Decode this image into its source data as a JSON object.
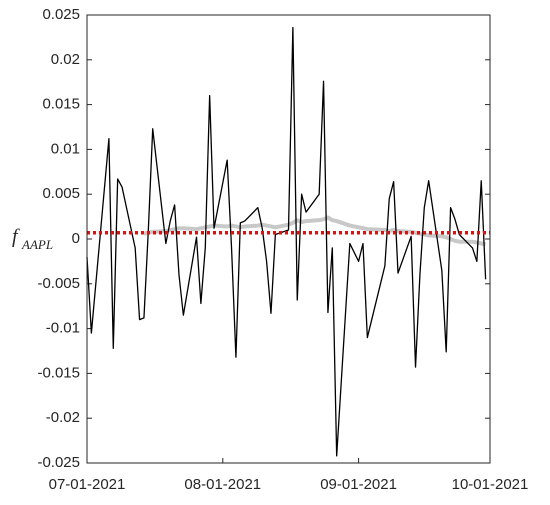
{
  "chart_data": {
    "type": "line",
    "ylabel": "f",
    "ylabel_subscript": "AAPL",
    "x": [
      "07-01-2021",
      "07-02-2021",
      "07-06-2021",
      "07-07-2021",
      "07-08-2021",
      "07-09-2021",
      "07-12-2021",
      "07-13-2021",
      "07-14-2021",
      "07-15-2021",
      "07-16-2021",
      "07-19-2021",
      "07-20-2021",
      "07-21-2021",
      "07-22-2021",
      "07-23-2021",
      "07-26-2021",
      "07-27-2021",
      "07-28-2021",
      "07-29-2021",
      "07-30-2021",
      "08-02-2021",
      "08-03-2021",
      "08-04-2021",
      "08-05-2021",
      "08-06-2021",
      "08-09-2021",
      "08-10-2021",
      "08-11-2021",
      "08-12-2021",
      "08-13-2021",
      "08-16-2021",
      "08-17-2021",
      "08-18-2021",
      "08-19-2021",
      "08-20-2021",
      "08-23-2021",
      "08-24-2021",
      "08-25-2021",
      "08-26-2021",
      "08-27-2021",
      "08-30-2021",
      "08-31-2021",
      "09-01-2021",
      "09-02-2021",
      "09-03-2021",
      "09-07-2021",
      "09-08-2021",
      "09-09-2021",
      "09-10-2021",
      "09-13-2021",
      "09-14-2021",
      "09-15-2021",
      "09-16-2021",
      "09-17-2021",
      "09-20-2021",
      "09-21-2021",
      "09-22-2021",
      "09-23-2021",
      "09-24-2021",
      "09-27-2021",
      "09-28-2021",
      "09-29-2021",
      "09-30-2021"
    ],
    "series": [
      {
        "color": "#c8c8c8",
        "width": 4,
        "values": [
          null,
          null,
          null,
          null,
          null,
          null,
          null,
          null,
          0.0006,
          0.0007,
          0.0008,
          0.0009,
          0.001,
          0.0011,
          0.0012,
          0.0012,
          0.0011,
          0.0012,
          0.0013,
          0.0014,
          0.0015,
          0.0014,
          0.0015,
          0.0014,
          0.0013,
          0.0014,
          0.0015,
          0.0016,
          0.0015,
          0.0014,
          0.0013,
          0.0016,
          0.0018,
          0.0021,
          0.0019,
          0.002,
          0.0021,
          0.0022,
          0.0024,
          0.0021,
          0.002,
          0.0015,
          0.0014,
          0.0013,
          0.0012,
          0.0011,
          0.001,
          0.0009,
          0.001,
          0.0009,
          0.0008,
          0.0007,
          0.0006,
          0.0005,
          0.0004,
          0.0003,
          0.0002,
          0,
          -0.0002,
          -0.0003,
          -0.0003,
          -0.0004,
          -0.0005,
          -0.0006
        ]
      },
      {
        "color": "#000000",
        "width": 1.3,
        "values": [
          -0.002,
          -0.0105,
          0.0112,
          -0.0122,
          0.0067,
          0.0058,
          -0.001,
          -0.009,
          -0.0088,
          0.001,
          0.0123,
          -0.0005,
          0.002,
          0.0038,
          -0.004,
          -0.0085,
          0.0002,
          -0.0072,
          -0.001,
          0.016,
          0.0012,
          0.0088,
          -0.001,
          -0.0132,
          0.0018,
          0.002,
          0.0035,
          0.0012,
          -0.0025,
          -0.0083,
          0.0005,
          0.001,
          0.0236,
          -0.0068,
          0.005,
          0.003,
          0.005,
          0.0176,
          -0.0082,
          -0.001,
          -0.0242,
          -0.0005,
          -0.0015,
          -0.0025,
          -0.0005,
          -0.011,
          -0.003,
          0.0045,
          0.0064,
          -0.0038,
          0.0003,
          -0.0143,
          -0.004,
          0.0035,
          0.0065,
          -0.0035,
          -0.0126,
          0.0035,
          0.0022,
          0.0005,
          -0.001,
          -0.0025,
          0.0065,
          -0.0045
        ]
      }
    ],
    "hline": {
      "value": 0.0007,
      "color": "#d01515"
    },
    "xlim": [
      "07-01-2021",
      "10-01-2021"
    ],
    "xticks": [
      "07-01-2021",
      "08-01-2021",
      "09-01-2021",
      "10-01-2021"
    ],
    "ylim": [
      -0.025,
      0.025
    ],
    "yticks": [
      -0.025,
      -0.02,
      -0.015,
      -0.01,
      -0.005,
      0,
      0.005,
      0.01,
      0.015,
      0.02,
      0.025
    ]
  }
}
